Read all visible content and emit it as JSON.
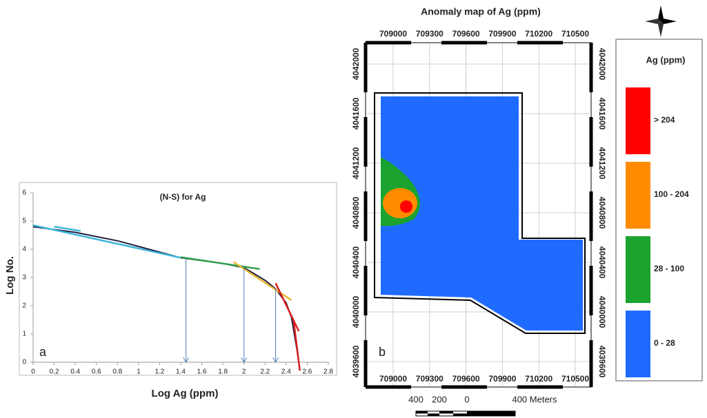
{
  "chart_data": {
    "type": "line",
    "title": "(N-S) for Ag",
    "x_label": "Log Ag (ppm)",
    "y_label": "Log No.",
    "panel_label": "a",
    "xlim": [
      0,
      2.8
    ],
    "xticks": [
      0,
      0.2,
      0.4,
      0.6,
      0.8,
      1,
      1.2,
      1.4,
      1.6,
      1.8,
      2,
      2.2,
      2.4,
      2.6,
      2.8
    ],
    "ylim": [
      0,
      6
    ],
    "yticks": [
      0,
      1,
      2,
      3,
      4,
      5,
      6
    ],
    "series": [
      {
        "color": "#1f1f3f",
        "x": [
          0,
          0.4,
          0.8,
          1,
          1.2,
          1.4,
          1.6,
          1.8,
          2,
          2.2,
          2.3,
          2.4,
          2.45,
          2.5,
          2.52
        ],
        "values": [
          4.8,
          4.6,
          4.3,
          4.1,
          3.9,
          3.7,
          3.6,
          3.5,
          3.35,
          2.9,
          2.6,
          2.1,
          1.6,
          0.5,
          0
        ]
      },
      {
        "color": "#3cb4d8",
        "x": [
          0.2,
          0.45
        ],
        "values": [
          4.8,
          4.65
        ]
      },
      {
        "color": "#3cb4d8",
        "x": [
          0,
          1.4
        ],
        "values": [
          4.85,
          3.7
        ]
      },
      {
        "color": "#2e9e4a",
        "x": [
          1.4,
          2.15
        ],
        "values": [
          3.72,
          3.3
        ]
      },
      {
        "color": "#e8b830",
        "x": [
          1.9,
          2.45
        ],
        "values": [
          3.55,
          2.2
        ]
      },
      {
        "color": "#d81e1e",
        "x": [
          2.3,
          2.52
        ],
        "values": [
          2.8,
          1.1
        ]
      },
      {
        "color": "#d81e1e",
        "x": [
          2.47,
          2.53
        ],
        "values": [
          1.5,
          -0.3
        ]
      }
    ],
    "arrows": {
      "x": [
        1.45,
        2,
        2.3
      ],
      "y": [
        3.7,
        3.35,
        2.6
      ]
    }
  },
  "map": {
    "title": "Anomaly map of Ag (ppm)",
    "panel_label": "b",
    "eastings": [
      709000,
      709300,
      709600,
      709900,
      710200,
      710500
    ],
    "northings": [
      4039600,
      4040000,
      4040400,
      4040800,
      4041200,
      4041600,
      4042000
    ],
    "legend_title": "Ag (ppm)",
    "classes": [
      {
        "label": "> 204",
        "color": "#ff0000"
      },
      {
        "label": "100 - 204",
        "color": "#ff8c00"
      },
      {
        "label": "28 - 100",
        "color": "#1aa32e"
      },
      {
        "label": "0 - 28",
        "color": "#1f6bff"
      }
    ],
    "scale_labels": [
      "400",
      "200",
      "0",
      "400 Meters"
    ]
  }
}
